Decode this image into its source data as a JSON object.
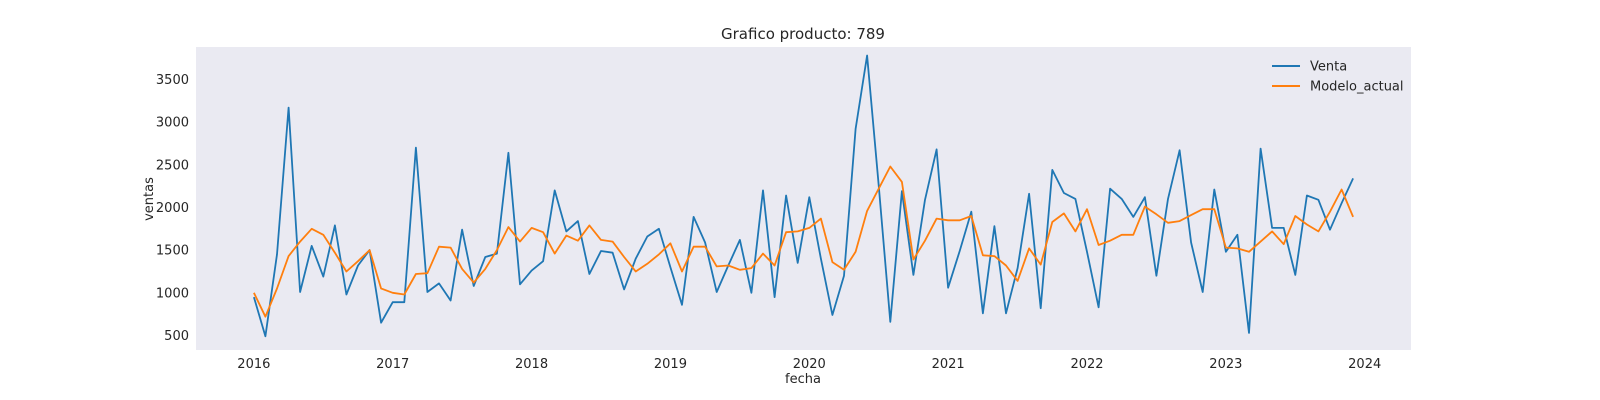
{
  "chart_data": {
    "type": "line",
    "title": "Grafico producto: 789",
    "xlabel": "fecha",
    "ylabel": "ventas",
    "x_ticks": [
      "2016",
      "2017",
      "2018",
      "2019",
      "2020",
      "2021",
      "2022",
      "2023",
      "2024"
    ],
    "y_ticks": [
      "500",
      "1000",
      "1500",
      "2000",
      "2500",
      "3000",
      "3500"
    ],
    "x_range": [
      "2015-08",
      "2024-05"
    ],
    "ylim": [
      330,
      3880
    ],
    "grid": false,
    "legend_position": "top-right",
    "background": "#eaeaf2",
    "dates": [
      "2016-01",
      "2016-02",
      "2016-03",
      "2016-04",
      "2016-05",
      "2016-06",
      "2016-07",
      "2016-08",
      "2016-09",
      "2016-10",
      "2016-11",
      "2016-12",
      "2017-01",
      "2017-02",
      "2017-03",
      "2017-04",
      "2017-05",
      "2017-06",
      "2017-07",
      "2017-08",
      "2017-09",
      "2017-10",
      "2017-11",
      "2017-12",
      "2018-01",
      "2018-02",
      "2018-03",
      "2018-04",
      "2018-05",
      "2018-06",
      "2018-07",
      "2018-08",
      "2018-09",
      "2018-10",
      "2018-11",
      "2018-12",
      "2019-01",
      "2019-02",
      "2019-03",
      "2019-04",
      "2019-05",
      "2019-06",
      "2019-07",
      "2019-08",
      "2019-09",
      "2019-10",
      "2019-11",
      "2019-12",
      "2020-01",
      "2020-02",
      "2020-03",
      "2020-04",
      "2020-05",
      "2020-06",
      "2020-07",
      "2020-08",
      "2020-09",
      "2020-10",
      "2020-11",
      "2020-12",
      "2021-01",
      "2021-02",
      "2021-03",
      "2021-04",
      "2021-05",
      "2021-06",
      "2021-07",
      "2021-08",
      "2021-09",
      "2021-10",
      "2021-11",
      "2021-12",
      "2022-01",
      "2022-02",
      "2022-03",
      "2022-04",
      "2022-05",
      "2022-06",
      "2022-07",
      "2022-08",
      "2022-09",
      "2022-10",
      "2022-11",
      "2022-12",
      "2023-01",
      "2023-02",
      "2023-03",
      "2023-04",
      "2023-05",
      "2023-06",
      "2023-07",
      "2023-08",
      "2023-09",
      "2023-10",
      "2023-11",
      "2023-12"
    ],
    "series": [
      {
        "name": "Venta",
        "color": "#1f77b4",
        "values": [
          950,
          490,
          1450,
          3170,
          1010,
          1550,
          1190,
          1790,
          980,
          1320,
          1500,
          650,
          890,
          890,
          2700,
          1010,
          1110,
          910,
          1740,
          1080,
          1420,
          1460,
          2640,
          1100,
          1260,
          1370,
          2200,
          1720,
          1840,
          1220,
          1490,
          1470,
          1040,
          1400,
          1660,
          1750,
          1300,
          860,
          1890,
          1590,
          1010,
          1320,
          1620,
          1000,
          2200,
          950,
          2140,
          1350,
          2120,
          1400,
          740,
          1200,
          2920,
          3780,
          2260,
          660,
          2190,
          1210,
          2090,
          2680,
          1060,
          1490,
          1950,
          760,
          1780,
          760,
          1290,
          2160,
          820,
          2440,
          2170,
          2100,
          1480,
          830,
          2220,
          2100,
          1890,
          2120,
          1200,
          2100,
          2670,
          1590,
          1010,
          2210,
          1480,
          1680,
          530,
          2690,
          1760,
          1760,
          1210,
          2140,
          2090,
          1740,
          2050,
          2340
        ]
      },
      {
        "name": "Modelo_actual",
        "color": "#ff7f0e",
        "values": [
          1000,
          720,
          1050,
          1430,
          1600,
          1750,
          1680,
          1470,
          1250,
          1370,
          1500,
          1050,
          1000,
          980,
          1220,
          1230,
          1540,
          1530,
          1280,
          1120,
          1280,
          1500,
          1770,
          1600,
          1760,
          1710,
          1460,
          1670,
          1610,
          1790,
          1620,
          1600,
          1420,
          1250,
          1340,
          1450,
          1580,
          1250,
          1540,
          1540,
          1310,
          1320,
          1270,
          1290,
          1460,
          1320,
          1710,
          1720,
          1760,
          1870,
          1360,
          1270,
          1480,
          1960,
          2220,
          2480,
          2300,
          1390,
          1610,
          1870,
          1850,
          1850,
          1900,
          1440,
          1430,
          1320,
          1140,
          1520,
          1330,
          1830,
          1930,
          1720,
          1980,
          1560,
          1610,
          1680,
          1680,
          2010,
          1920,
          1820,
          1840,
          1910,
          1980,
          1980,
          1530,
          1520,
          1480,
          1600,
          1720,
          1570,
          1900,
          1800,
          1720,
          1950,
          2210,
          1890
        ]
      }
    ]
  }
}
